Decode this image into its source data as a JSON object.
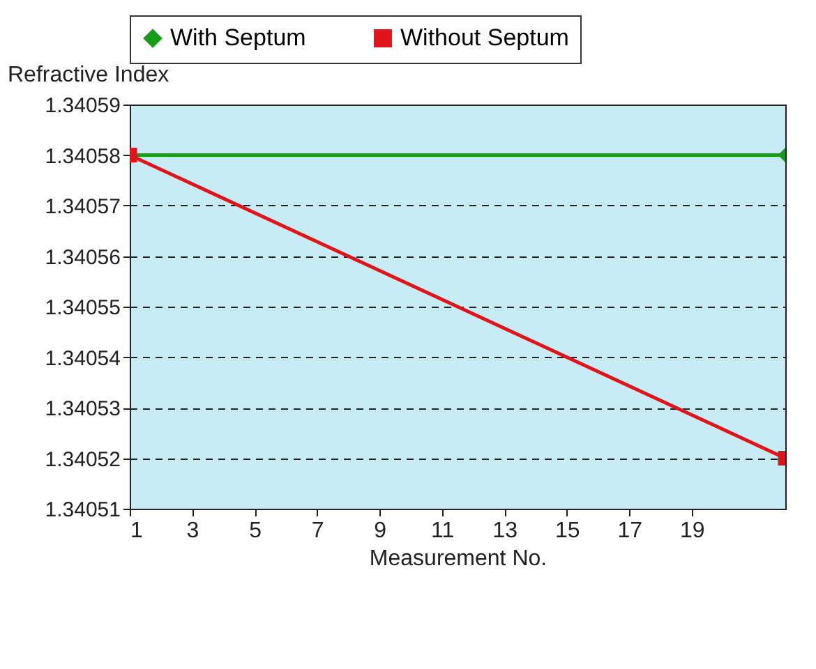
{
  "chart_data": {
    "type": "line",
    "xlabel": "Measurement No.",
    "ylabel": "Refractive Index",
    "x": [
      1,
      22
    ],
    "series": [
      {
        "name": "With Septum",
        "color": "#1a9a1a",
        "values": [
          1.34058,
          1.34058
        ],
        "marker": "diamond"
      },
      {
        "name": "Without Septum",
        "color": "#e0151b",
        "values": [
          1.34058,
          1.34052
        ],
        "marker": "square"
      }
    ],
    "xlim": [
      1,
      22
    ],
    "xticks": [
      1,
      3,
      5,
      7,
      9,
      11,
      13,
      15,
      17,
      19
    ],
    "ylim": [
      1.34051,
      1.34059
    ],
    "yticks": [
      1.34051,
      1.34052,
      1.34053,
      1.34054,
      1.34055,
      1.34056,
      1.34057,
      1.34058,
      1.34059
    ],
    "grid": "y",
    "legend": "top",
    "line_style": "solid"
  }
}
